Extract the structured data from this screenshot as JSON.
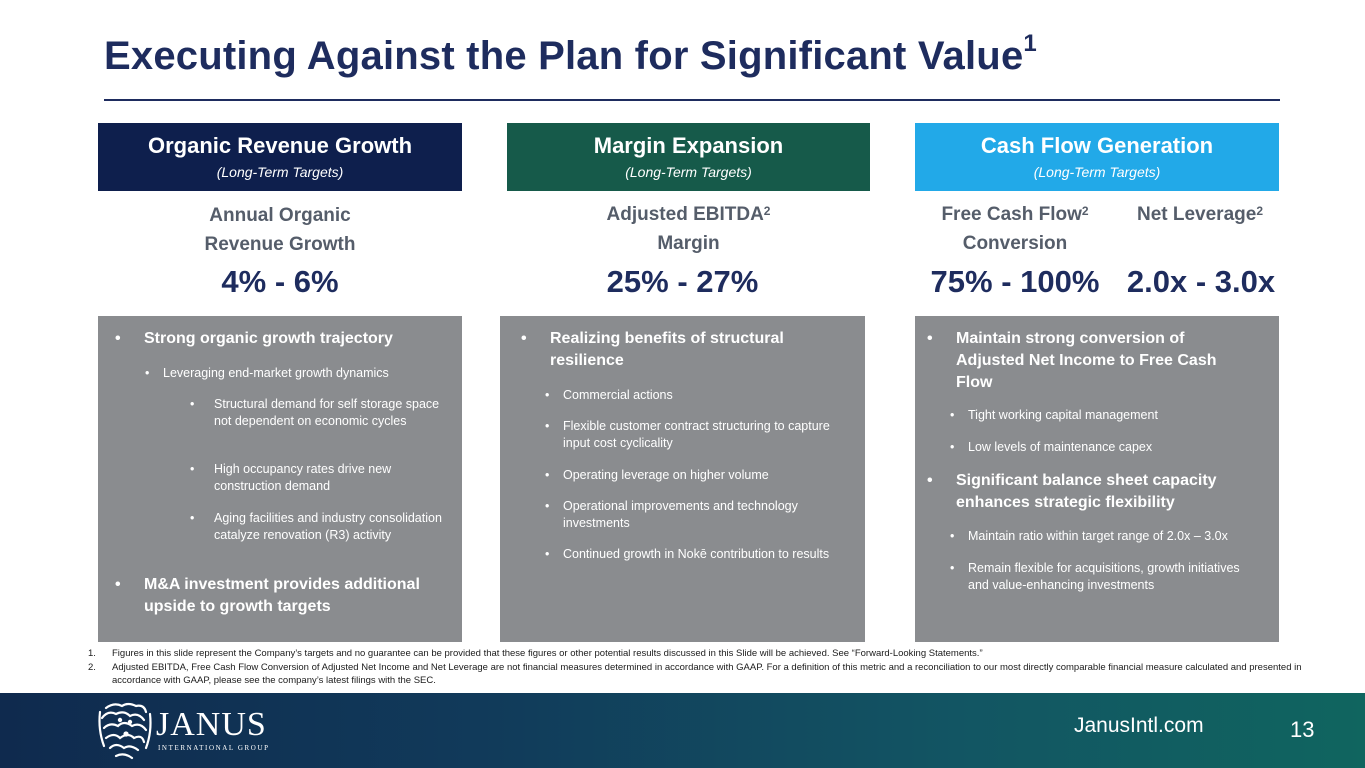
{
  "slide": {
    "title": "Executing Against the Plan for Significant Value",
    "title_sup": "1",
    "page_number": "13",
    "website": "JanusIntl.com"
  },
  "logo": {
    "name": "JANUS",
    "sub": "INTERNATIONAL GROUP",
    "icon": "lion-crest-icon"
  },
  "colors": {
    "navy": "#0e1f4d",
    "green": "#165a4a",
    "cyan": "#22a9e8",
    "gray_box": "#8a8c8f",
    "title": "#1e2c5e"
  },
  "columns": [
    {
      "header": "Organic Revenue Growth",
      "sub": "(Long-Term Targets)",
      "metric_line1": "Annual Organic",
      "metric_line2": "Revenue Growth",
      "value": "4% - 6%",
      "bullets": [
        {
          "text": "Strong organic growth trajectory"
        },
        {
          "text": "Leveraging end-market growth dynamics"
        },
        {
          "text": "Structural demand for self storage space not dependent on economic cycles"
        },
        {
          "text": "High occupancy rates drive new construction demand"
        },
        {
          "text": "Aging facilities and industry consolidation catalyze renovation (R3) activity"
        },
        {
          "text": "M&A investment provides additional upside to growth targets"
        }
      ]
    },
    {
      "header": "Margin Expansion",
      "sub": "(Long-Term Targets)",
      "metric_line1": "Adjusted EBITDA",
      "metric_line1_sup": "2",
      "metric_line2": "Margin",
      "value": "25% - 27%",
      "bullets": [
        {
          "text": "Realizing benefits of structural resilience"
        },
        {
          "text": "Commercial actions"
        },
        {
          "text": "Flexible customer contract structuring to capture input cost cyclicality"
        },
        {
          "text": "Operating leverage on higher volume"
        },
        {
          "text": "Operational improvements and technology investments"
        },
        {
          "text": "Continued growth in Nokē contribution to results"
        }
      ]
    },
    {
      "header": "Cash Flow Generation",
      "sub": "(Long-Term Targets)",
      "metric_a_line1": "Free Cash Flow",
      "metric_a_sup": "2",
      "metric_a_line2": "Conversion",
      "metric_b": "Net Leverage",
      "metric_b_sup": "2",
      "value_a": "75% - 100%",
      "value_b": "2.0x - 3.0x",
      "bullets": [
        {
          "text": "Maintain strong conversion of Adjusted Net Income to Free Cash Flow"
        },
        {
          "text": "Tight working capital management"
        },
        {
          "text": "Low levels of maintenance capex"
        },
        {
          "text": "Significant balance sheet capacity enhances strategic flexibility"
        },
        {
          "text": "Maintain ratio within target range of 2.0x – 3.0x"
        },
        {
          "text": "Remain flexible for acquisitions, growth initiatives and value-enhancing investments"
        }
      ]
    }
  ],
  "footnotes": [
    {
      "num": "1.",
      "text": "Figures in this slide represent the Company’s targets and no guarantee can be provided that these figures or other potential results discussed in this Slide will be achieved. See “Forward-Looking Statements.”"
    },
    {
      "num": "2.",
      "text": "Adjusted EBITDA, Free Cash Flow Conversion of Adjusted Net Income and Net Leverage are not financial measures determined in accordance with GAAP. For a definition of this metric and a reconciliation to our most directly comparable financial measure calculated and presented in accordance with GAAP, please see the company’s latest filings with the SEC."
    }
  ]
}
